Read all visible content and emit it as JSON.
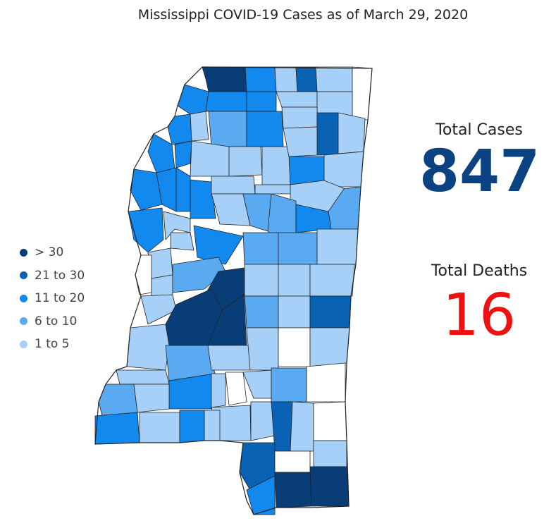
{
  "title": "Mississippi COVID-19 Cases as of March 29, 2020",
  "legend": [
    {
      "label": "> 30",
      "color": "#083d77"
    },
    {
      "label": "21 to 30",
      "color": "#0a62b5"
    },
    {
      "label": "11 to 20",
      "color": "#1289ee"
    },
    {
      "label": "6 to 10",
      "color": "#5aaaf2"
    },
    {
      "label": "1 to 5",
      "color": "#a6d0f8"
    }
  ],
  "stats": {
    "cases_label": "Total Cases",
    "cases_value": "847",
    "cases_color": "#0b4281",
    "deaths_label": "Total Deaths",
    "deaths_value": "16",
    "deaths_color": "#ee1111"
  },
  "colors": {
    "none": "#ffffff",
    "border": "#222222"
  }
}
